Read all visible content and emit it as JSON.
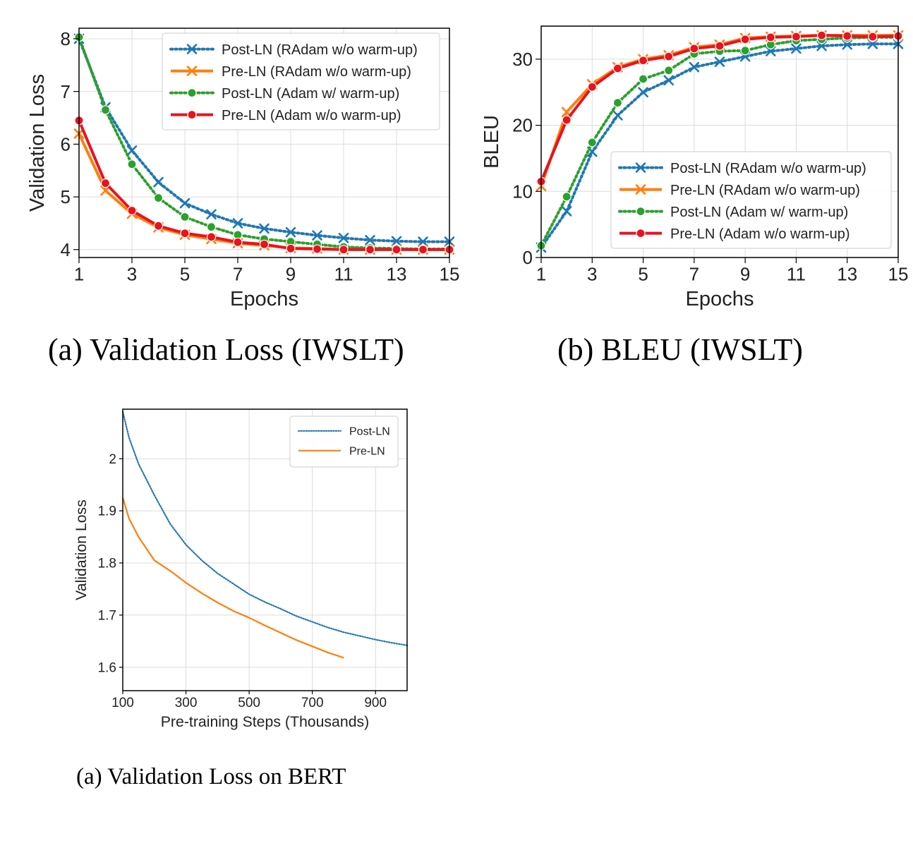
{
  "captions": [
    "(a)  Validation Loss (IWSLT)",
    "(b)  BLEU (IWSLT)",
    "(a)  Validation Loss on BERT"
  ],
  "chart_data": [
    {
      "type": "line",
      "title": "",
      "xlabel": "Epochs",
      "ylabel": "Validation Loss",
      "xlim": [
        1,
        15
      ],
      "ylim": [
        3.85,
        8.2
      ],
      "xticks": [
        1,
        3,
        5,
        7,
        9,
        11,
        13,
        15
      ],
      "yticks": [
        4,
        5,
        6,
        7,
        8
      ],
      "grid": true,
      "legend": "top-right",
      "x": [
        1,
        2,
        3,
        4,
        5,
        6,
        7,
        8,
        9,
        10,
        11,
        12,
        13,
        14,
        15
      ],
      "series": [
        {
          "name": "Post-LN (RAdam w/o warm-up)",
          "color": "#1f77b4",
          "style": "dotted",
          "marker": "x",
          "values": [
            8.0,
            6.7,
            5.88,
            5.28,
            4.88,
            4.67,
            4.5,
            4.4,
            4.33,
            4.27,
            4.22,
            4.18,
            4.16,
            4.15,
            4.15
          ]
        },
        {
          "name": "Pre-LN (RAdam w/o warm-up)",
          "color": "#ff7f0e",
          "style": "solid",
          "marker": "x",
          "values": [
            6.2,
            5.12,
            4.68,
            4.42,
            4.28,
            4.2,
            4.12,
            4.08,
            4.03,
            4.02,
            4.0,
            4.0,
            4.0,
            4.0,
            4.0
          ]
        },
        {
          "name": "Post-LN (Adam w/ warm-up)",
          "color": "#2ca02c",
          "style": "dotted",
          "marker": "o",
          "values": [
            8.03,
            6.65,
            5.62,
            4.98,
            4.62,
            4.43,
            4.28,
            4.2,
            4.15,
            4.1,
            4.05,
            4.03,
            4.02,
            4.01,
            4.01
          ]
        },
        {
          "name": "Pre-LN (Adam w/o warm-up)",
          "color": "#e8131f",
          "style": "solid",
          "marker": "o",
          "values": [
            6.45,
            5.26,
            4.74,
            4.45,
            4.31,
            4.24,
            4.14,
            4.1,
            4.02,
            4.01,
            4.0,
            4.0,
            4.0,
            4.0,
            4.0
          ]
        }
      ]
    },
    {
      "type": "line",
      "title": "",
      "xlabel": "Epochs",
      "ylabel": "BLEU",
      "xlim": [
        1,
        15
      ],
      "ylim": [
        0,
        35
      ],
      "xticks": [
        1,
        3,
        5,
        7,
        9,
        11,
        13,
        15
      ],
      "yticks": [
        0,
        10,
        20,
        30
      ],
      "grid": true,
      "legend": "lower-right",
      "x": [
        1,
        2,
        3,
        4,
        5,
        6,
        7,
        8,
        9,
        10,
        11,
        12,
        13,
        14,
        15
      ],
      "series": [
        {
          "name": "Post-LN (RAdam w/o warm-up)",
          "color": "#1f77b4",
          "style": "dotted",
          "marker": "x",
          "values": [
            1.5,
            7.0,
            16.0,
            21.5,
            25.0,
            26.8,
            28.8,
            29.6,
            30.4,
            31.2,
            31.6,
            32.0,
            32.2,
            32.3,
            32.3
          ]
        },
        {
          "name": "Pre-LN (RAdam w/o warm-up)",
          "color": "#ff7f0e",
          "style": "solid",
          "marker": "x",
          "values": [
            10.8,
            22.0,
            26.2,
            28.8,
            30.0,
            30.6,
            31.8,
            32.2,
            33.2,
            33.4,
            33.5,
            33.6,
            33.6,
            33.6,
            33.6
          ]
        },
        {
          "name": "Post-LN (Adam w/ warm-up)",
          "color": "#2ca02c",
          "style": "dotted",
          "marker": "o",
          "values": [
            1.8,
            9.2,
            17.4,
            23.4,
            27.0,
            28.3,
            30.8,
            31.2,
            31.3,
            32.2,
            32.8,
            33.0,
            33.2,
            33.3,
            33.3
          ]
        },
        {
          "name": "Pre-LN (Adam w/o warm-up)",
          "color": "#e8131f",
          "style": "solid",
          "marker": "o",
          "values": [
            11.5,
            20.8,
            25.8,
            28.6,
            29.8,
            30.4,
            31.6,
            32.0,
            33.0,
            33.3,
            33.4,
            33.6,
            33.5,
            33.4,
            33.5
          ]
        }
      ]
    },
    {
      "type": "line",
      "title": "",
      "xlabel": "Pre-training Steps (Thousands)",
      "ylabel": "Validation Loss",
      "xlim": [
        100,
        1000
      ],
      "ylim": [
        1.555,
        2.095
      ],
      "xticks": [
        100,
        300,
        500,
        700,
        900
      ],
      "yticks": [
        1.6,
        1.7,
        1.8,
        1.9,
        2.0
      ],
      "grid": true,
      "legend": "top-right",
      "series": [
        {
          "name": "Post-LN",
          "color": "#1f77b4",
          "style": "dotted",
          "x": [
            100,
            120,
            150,
            200,
            250,
            300,
            350,
            400,
            450,
            500,
            550,
            600,
            650,
            700,
            750,
            800,
            850,
            900,
            950,
            1000
          ],
          "values": [
            2.09,
            2.04,
            1.99,
            1.93,
            1.875,
            1.835,
            1.805,
            1.78,
            1.76,
            1.74,
            1.725,
            1.712,
            1.698,
            1.687,
            1.676,
            1.667,
            1.66,
            1.653,
            1.647,
            1.642
          ]
        },
        {
          "name": "Pre-LN",
          "color": "#ff7f0e",
          "style": "solid",
          "x": [
            100,
            120,
            150,
            200,
            250,
            300,
            350,
            400,
            450,
            500,
            550,
            600,
            650,
            700,
            750,
            800
          ],
          "values": [
            1.925,
            1.885,
            1.85,
            1.805,
            1.785,
            1.762,
            1.742,
            1.724,
            1.708,
            1.695,
            1.68,
            1.666,
            1.652,
            1.64,
            1.628,
            1.618
          ]
        }
      ]
    }
  ]
}
